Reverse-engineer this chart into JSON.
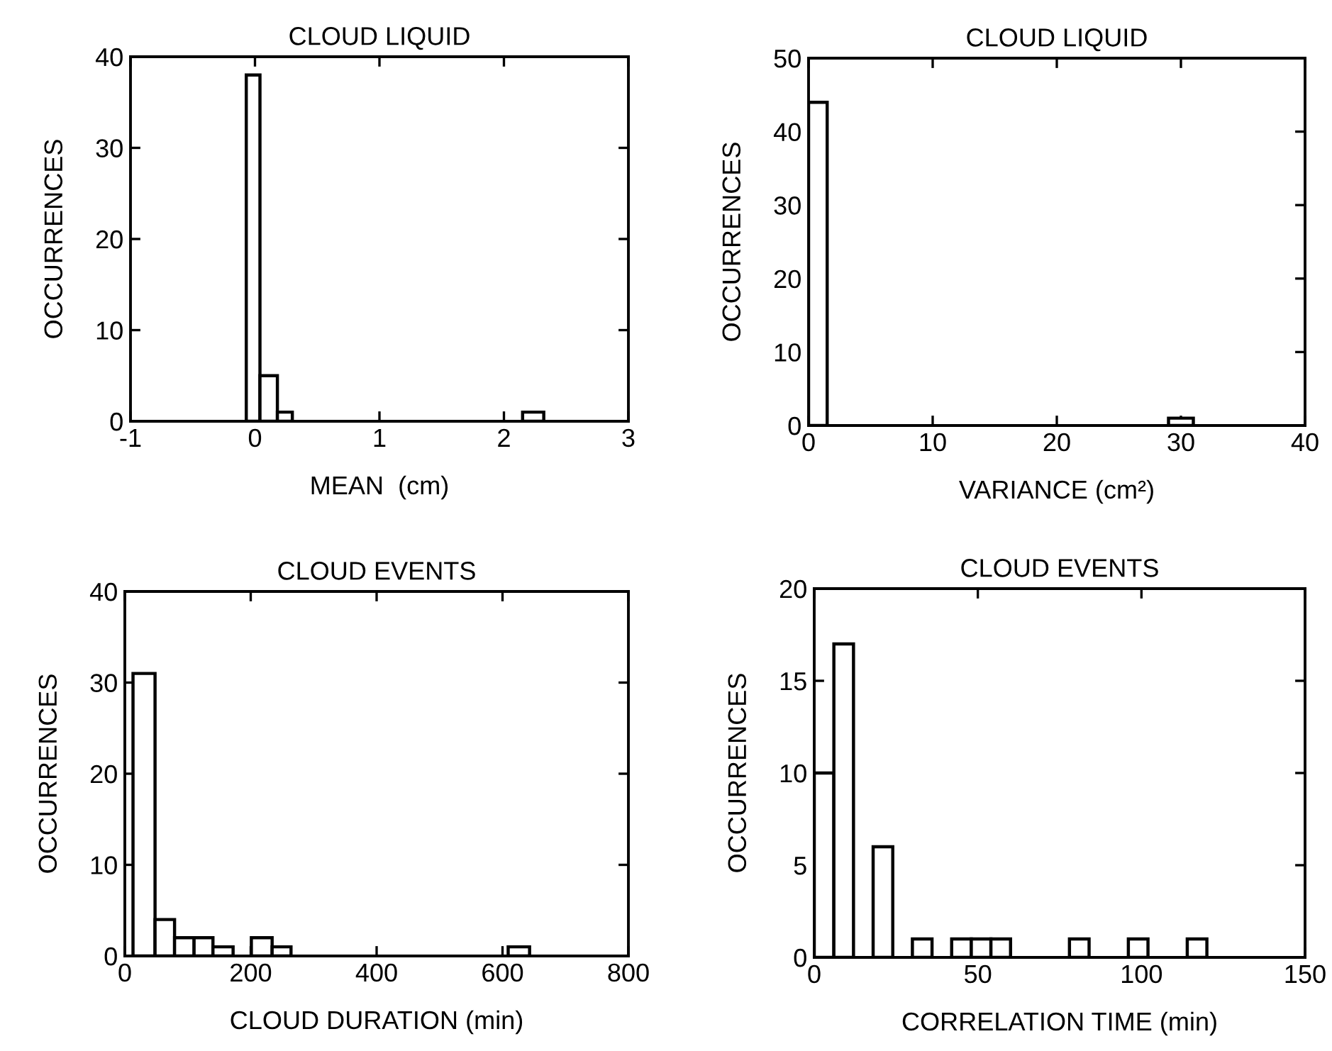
{
  "chart_data": [
    {
      "type": "histogram",
      "title": "CLOUD LIQUID",
      "xlabel": "MEAN  (cm)",
      "ylabel": "OCCURRENCES",
      "bins": [
        -0.07,
        0.04,
        0.18,
        0.3,
        2.15,
        2.32
      ],
      "values": [
        38,
        5,
        1,
        null,
        1
      ],
      "color": "#ffffff",
      "xlim": [
        -1,
        3
      ],
      "xticks": [
        -1,
        0,
        1,
        2,
        3
      ],
      "ylim": [
        0,
        40
      ],
      "yticks": [
        0,
        10,
        20,
        30,
        40
      ],
      "grid": false
    },
    {
      "type": "histogram",
      "title": "CLOUD LIQUID",
      "xlabel": "VARIANCE (cm²)",
      "ylabel": "OCCURRENCES",
      "bins": [
        0,
        1.5,
        29,
        31
      ],
      "values": [
        44,
        null,
        1
      ],
      "color": "#ffffff",
      "xlim": [
        0,
        40
      ],
      "xticks": [
        0,
        10,
        20,
        30,
        40
      ],
      "ylim": [
        0,
        50
      ],
      "yticks": [
        0,
        10,
        20,
        30,
        40,
        50
      ],
      "grid": false
    },
    {
      "type": "histogram",
      "title": "CLOUD EVENTS",
      "xlabel": "CLOUD DURATION (min)",
      "ylabel": "OCCURRENCES",
      "bins": [
        13,
        48,
        79,
        110,
        140,
        172,
        201,
        234,
        264,
        609,
        643
      ],
      "values": [
        31,
        4,
        2,
        2,
        1,
        null,
        2,
        1,
        null,
        1
      ],
      "color": "#ffffff",
      "xlim": [
        0,
        800
      ],
      "xticks": [
        0,
        200,
        400,
        600,
        800
      ],
      "ylim": [
        0,
        40
      ],
      "yticks": [
        0,
        10,
        20,
        30,
        40
      ],
      "grid": false
    },
    {
      "type": "histogram",
      "title": "CLOUD EVENTS",
      "xlabel": "CORRELATION TIME (min)",
      "ylabel": "OCCURRENCES",
      "bins": [
        0,
        6,
        12,
        18,
        24,
        30,
        36,
        42,
        48,
        54,
        60,
        66,
        72,
        78,
        84,
        90,
        96,
        102,
        108,
        114,
        120
      ],
      "values": [
        10,
        17,
        null,
        6,
        null,
        1,
        null,
        1,
        1,
        1,
        null,
        null,
        null,
        1,
        null,
        null,
        1,
        null,
        null,
        1
      ],
      "color": "#ffffff",
      "xlim": [
        0,
        150
      ],
      "xticks": [
        0,
        50,
        100,
        150
      ],
      "ylim": [
        0,
        20
      ],
      "yticks": [
        0,
        5,
        10,
        15,
        20
      ],
      "grid": false
    }
  ]
}
